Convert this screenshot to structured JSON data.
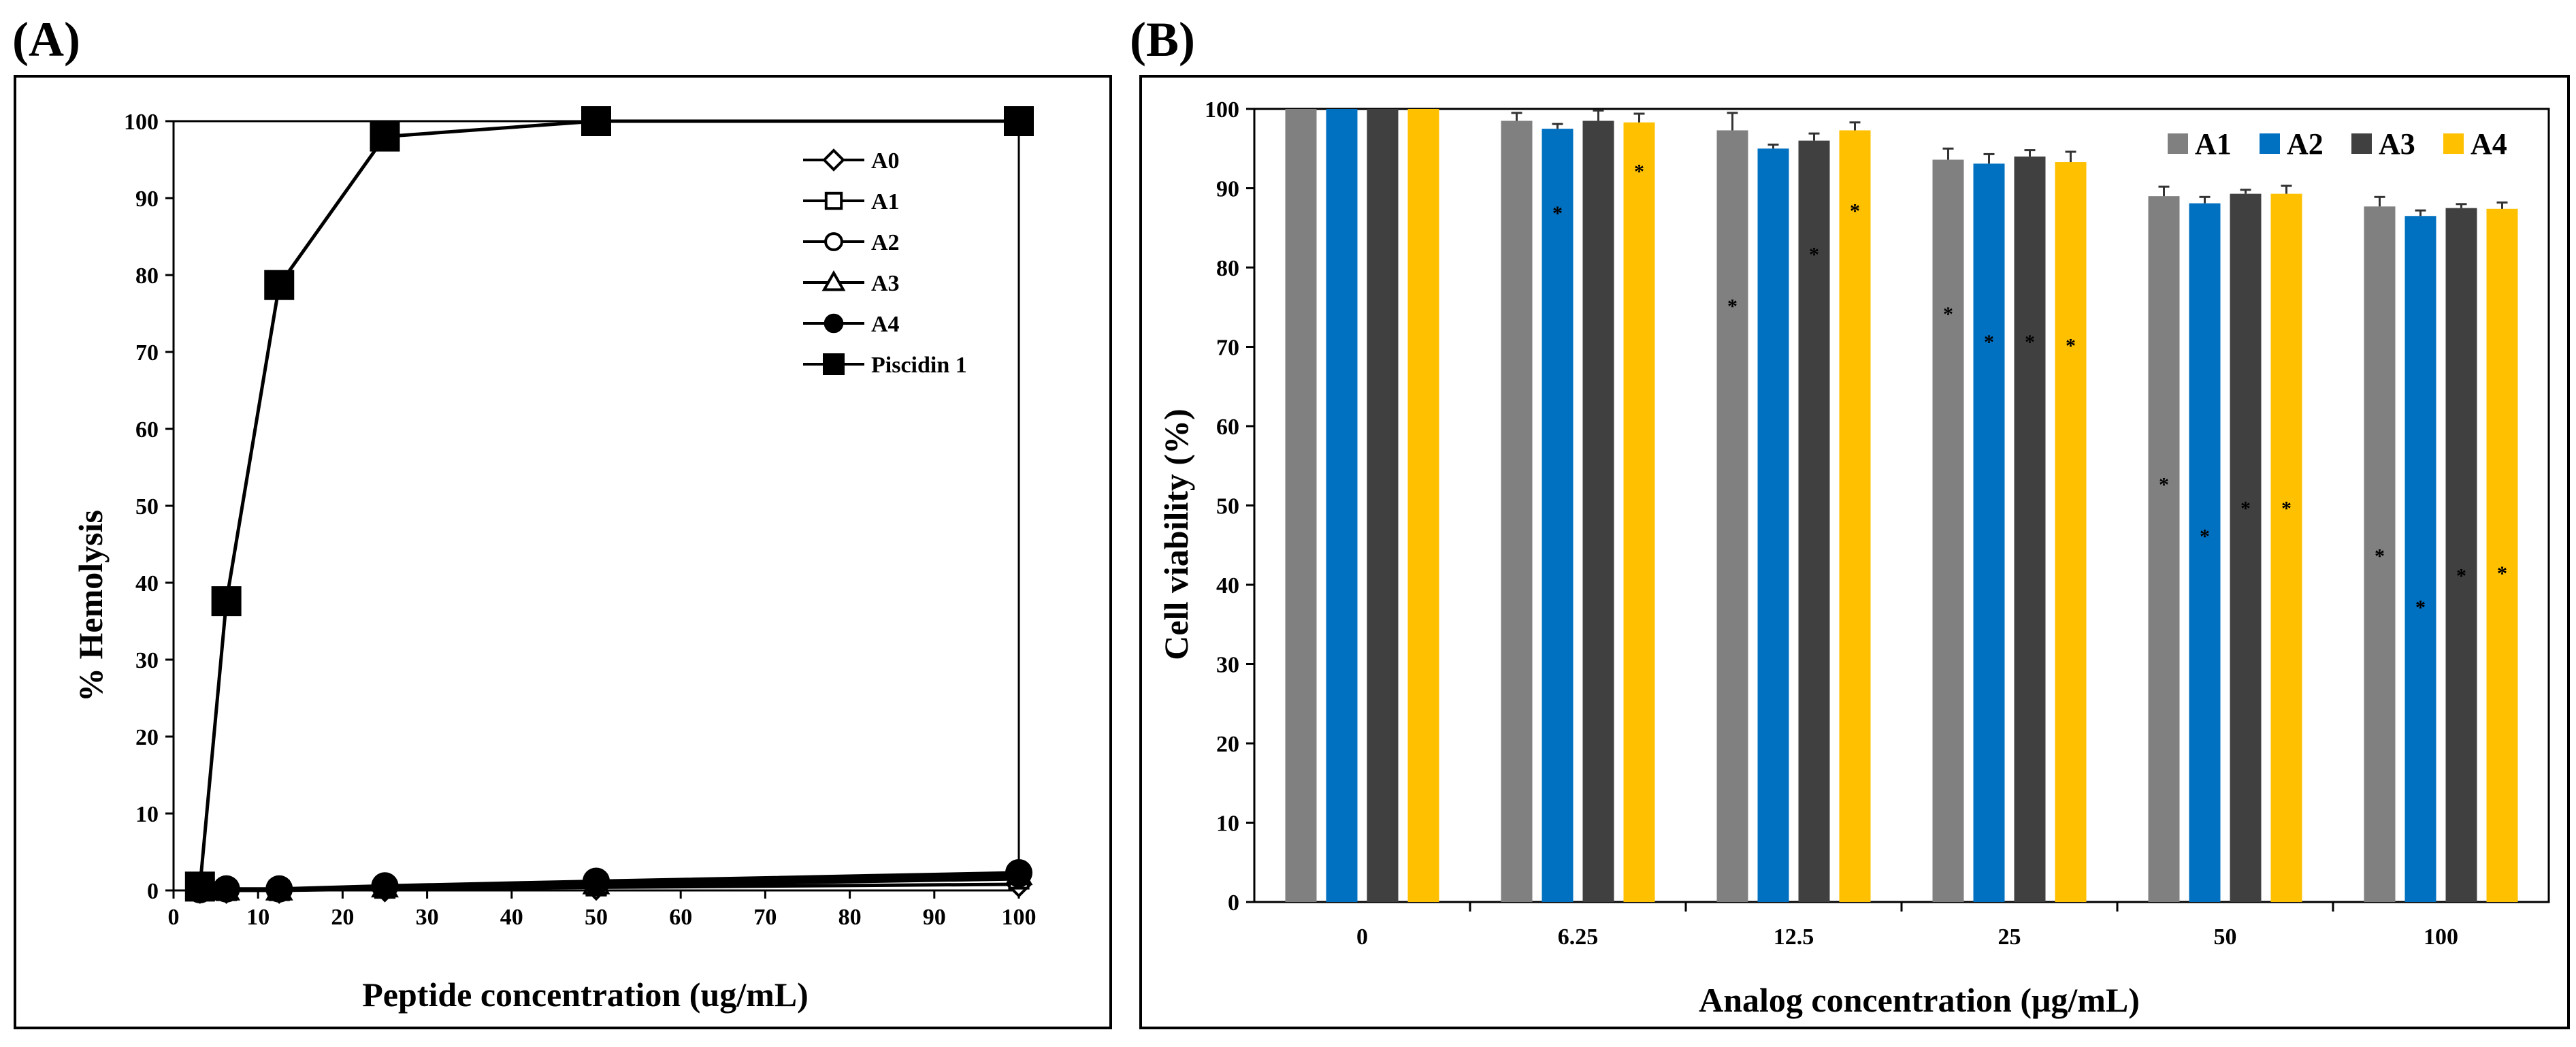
{
  "chart_data": [
    {
      "panel_label": "(A)",
      "type": "line",
      "xlabel": "Peptide concentration (ug/mL)",
      "ylabel": "% Hemolysis",
      "xlim": [
        0,
        100
      ],
      "ylim": [
        0,
        100
      ],
      "xticks": [
        0,
        10,
        20,
        30,
        40,
        50,
        60,
        70,
        80,
        90,
        100
      ],
      "yticks": [
        0,
        10,
        20,
        30,
        40,
        50,
        60,
        70,
        80,
        90,
        100
      ],
      "legend_position": "top-right",
      "series": [
        {
          "name": "A0",
          "marker": "diamond-open",
          "x": [
            3.125,
            6.25,
            12.5,
            25,
            50,
            100
          ],
          "y": [
            0,
            0,
            0,
            0.2,
            0.4,
            0.8
          ]
        },
        {
          "name": "A1",
          "marker": "square-open",
          "x": [
            3.125,
            6.25,
            12.5,
            25,
            50,
            100
          ],
          "y": [
            0,
            0,
            0,
            0.3,
            0.6,
            1.5
          ]
        },
        {
          "name": "A2",
          "marker": "circle-open",
          "x": [
            3.125,
            6.25,
            12.5,
            25,
            50,
            100
          ],
          "y": [
            0,
            0,
            0,
            0.3,
            0.7,
            1.8
          ]
        },
        {
          "name": "A3",
          "marker": "triangle-open",
          "x": [
            3.125,
            6.25,
            12.5,
            25,
            50,
            100
          ],
          "y": [
            0,
            0,
            0,
            0.4,
            0.8,
            2.0
          ]
        },
        {
          "name": "A4",
          "marker": "circle-filled",
          "x": [
            3.125,
            6.25,
            12.5,
            25,
            50,
            100
          ],
          "y": [
            0.1,
            0.2,
            0.2,
            0.6,
            1.2,
            2.3
          ]
        },
        {
          "name": "Piscidin 1",
          "marker": "square-filled",
          "x": [
            3.125,
            6.25,
            12.5,
            25,
            50,
            100
          ],
          "y": [
            0.5,
            37.6,
            78.7,
            98.0,
            100,
            100
          ]
        }
      ]
    },
    {
      "panel_label": "(B)",
      "type": "bar",
      "xlabel": "Analog  concentration (μg/mL)",
      "ylabel": "Cell viability (%)",
      "ylim": [
        0,
        100
      ],
      "yticks": [
        0,
        10,
        20,
        30,
        40,
        50,
        60,
        70,
        80,
        90,
        100
      ],
      "categories": [
        "0",
        "6.25",
        "12.5",
        "25",
        "50",
        "100"
      ],
      "legend_position": "top-right",
      "series": [
        {
          "name": "A1",
          "color": "#808080",
          "values": [
            100,
            98.5,
            97.3,
            93.6,
            89.0,
            87.7
          ],
          "errors": [
            0,
            1.0,
            2.2,
            1.4,
            1.2,
            1.2
          ],
          "sig_marks": [
            null,
            null,
            75.5,
            74.5,
            53.0,
            44.0
          ]
        },
        {
          "name": "A2",
          "color": "#0070C0",
          "values": [
            100,
            97.5,
            95.0,
            93.1,
            88.1,
            86.5
          ],
          "errors": [
            0,
            0.6,
            0.5,
            1.2,
            0.8,
            0.7
          ],
          "sig_marks": [
            null,
            87.2,
            null,
            71.0,
            46.5,
            37.5
          ]
        },
        {
          "name": "A3",
          "color": "#404040",
          "values": [
            100,
            98.5,
            96.0,
            94.0,
            89.3,
            87.5
          ],
          "errors": [
            0,
            1.3,
            0.9,
            0.8,
            0.5,
            0.5
          ],
          "sig_marks": [
            null,
            null,
            82.0,
            71.0,
            50.0,
            41.5
          ]
        },
        {
          "name": "A4",
          "color": "#FFC000",
          "values": [
            100,
            98.3,
            97.3,
            93.3,
            89.3,
            87.4
          ],
          "errors": [
            0,
            1.1,
            1.0,
            1.3,
            1.0,
            0.8
          ],
          "sig_marks": [
            null,
            92.5,
            87.5,
            70.5,
            50.0,
            41.8
          ]
        }
      ],
      "sig_symbol": "*"
    }
  ]
}
